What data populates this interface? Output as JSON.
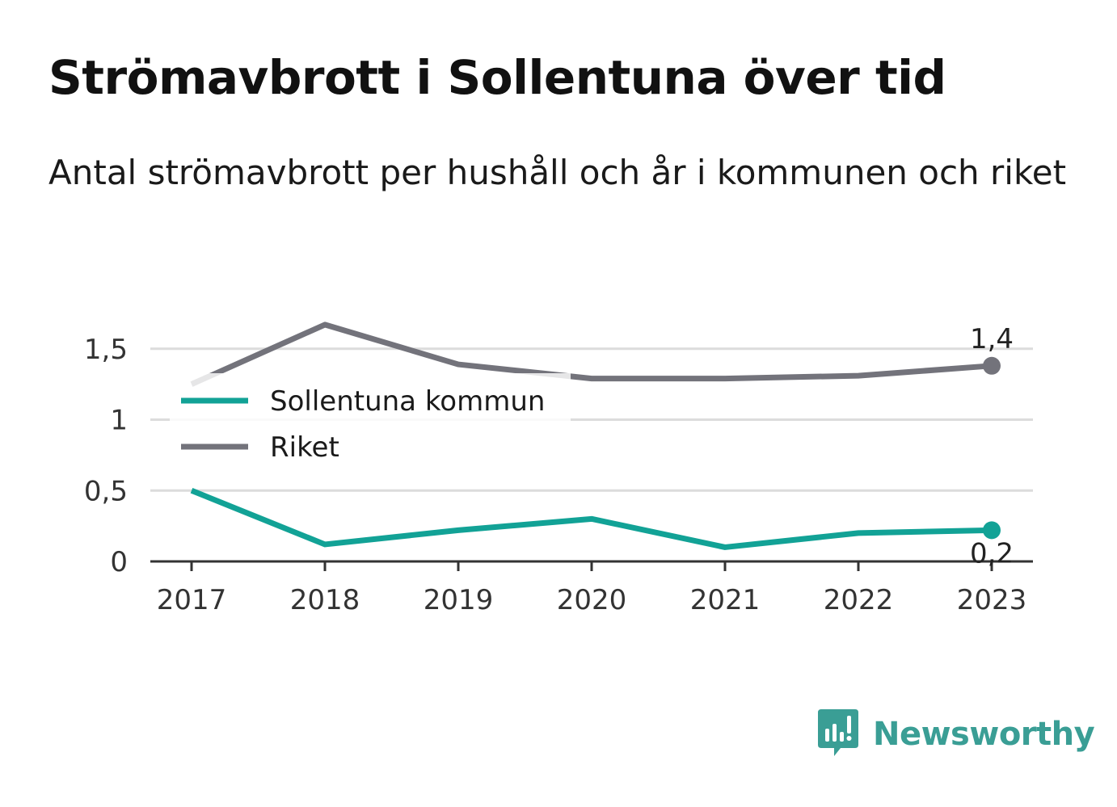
{
  "header": {
    "title": "Strömavbrott i Sollentuna över tid",
    "subtitle": "Antal strömavbrott per hushåll och år i kommunen och riket"
  },
  "brand": {
    "name": "Newsworthy",
    "color": "#3a9e95"
  },
  "chart_data": {
    "type": "line",
    "categories": [
      "2017",
      "2018",
      "2019",
      "2020",
      "2021",
      "2022",
      "2023"
    ],
    "y_ticks": [
      {
        "value": 0,
        "label": "0"
      },
      {
        "value": 0.5,
        "label": "0,5"
      },
      {
        "value": 1,
        "label": "1"
      },
      {
        "value": 1.5,
        "label": "1,5"
      }
    ],
    "ylim": [
      0,
      1.8
    ],
    "grid": true,
    "legend_position": "top-left",
    "series": [
      {
        "name": "Sollentuna kommun",
        "color": "#12a296",
        "values": [
          0.5,
          0.12,
          0.22,
          0.3,
          0.1,
          0.2,
          0.22
        ],
        "end_label": "0,2"
      },
      {
        "name": "Riket",
        "color": "#73737b",
        "values": [
          1.25,
          1.67,
          1.39,
          1.29,
          1.29,
          1.31,
          1.38
        ],
        "end_label": "1,4"
      }
    ]
  }
}
